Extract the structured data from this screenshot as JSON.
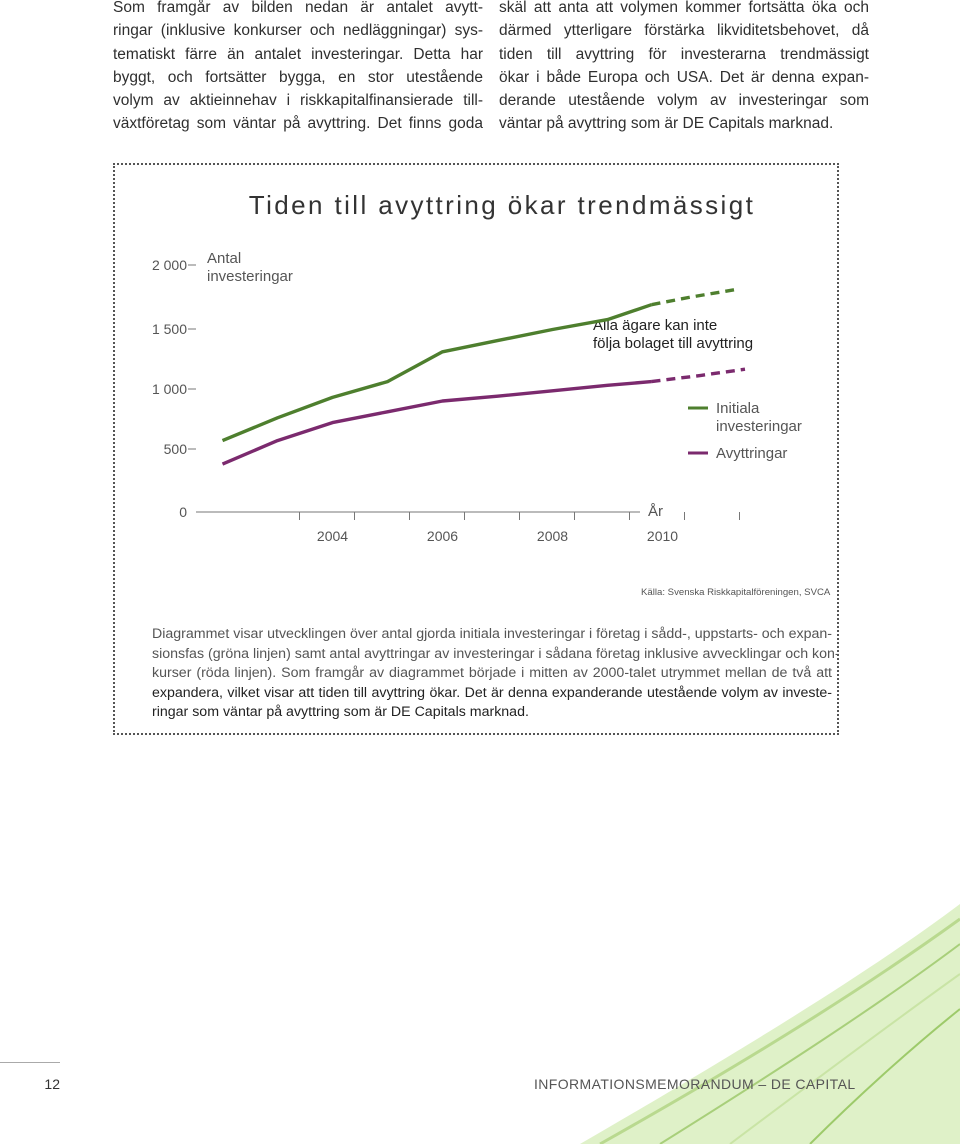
{
  "body_text": {
    "left_lines": [
      "Som framgår av bilden nedan är antalet avytt-",
      "ringar (inklusive konkurser och nedläggningar) sys-",
      "tematiskt färre än antalet investeringar. Detta har",
      "byggt, och fortsätter bygga, en stor utestående",
      "volym av aktieinnehav i riskkapitalfinansierade till-",
      "växtföretag som väntar på avyttring. Det finns goda"
    ],
    "right_lines": [
      "skäl att anta att volymen kommer fortsätta öka och",
      "därmed ytterligare förstärka likviditetsbehovet, då",
      "tiden till avyttring för investerarna trendmässigt",
      "ökar i både Europa och USA. Det är denna expan-",
      "derande utestående volym av investeringar som",
      "väntar på avyttring som är DE Capitals marknad."
    ]
  },
  "figure": {
    "title": "Tiden till avyttring ökar trendmässigt",
    "source": "Källa: Svenska Riskkapitalföreningen, SVCA",
    "caption_lines": [
      "Diagrammet visar utvecklingen över antal gjorda initiala investeringar i företag i sådd-, uppstarts- och expan-",
      "sionsfas (gröna linjen) samt antal avyttringar av investeringar i sådana företag inklusive avvecklingar och kon-",
      "kurser (röda linjen). Som framgår av diagrammet började i mitten av 2000-talet utrymmet mellan de två att",
      "expandera, vilket visar att tiden till avyttring ökar. Det är denna expanderande utestående volym av investe-",
      "ringar som väntar på avyttring som är DE Capitals marknad."
    ]
  },
  "chart_data": {
    "type": "line",
    "title": "Tiden till avyttring ökar trendmässigt",
    "ylabel": "Antal investeringar",
    "xlabel": "År",
    "y_ticks": [
      "2 000",
      "1 500",
      "1 000",
      "500",
      "0"
    ],
    "y_tick_values": [
      2000,
      1500,
      1000,
      500,
      0
    ],
    "x_ticks": [
      "2004",
      "2006",
      "2008",
      "2010"
    ],
    "ylim": [
      0,
      2000
    ],
    "xlim": [
      2002,
      2013
    ],
    "annotation": "Alla ägare kan inte följa bolaget till avyttring",
    "series": [
      {
        "name": "Initiala investeringar",
        "color": "#4e7f2e",
        "x": [
          2002.5,
          2003.5,
          2004.5,
          2005.5,
          2006.5,
          2007.5,
          2008.5,
          2009.5,
          2010.3
        ],
        "values": [
          570,
          760,
          930,
          1060,
          1300,
          1390,
          1480,
          1560,
          1680
        ],
        "projection": {
          "x": [
            2010.3,
            2011.0,
            2011.8
          ],
          "values": [
            1680,
            1740,
            1800
          ]
        }
      },
      {
        "name": "Avyttringar",
        "color": "#7b2a6e",
        "x": [
          2002.5,
          2003.5,
          2004.5,
          2005.5,
          2006.5,
          2007.5,
          2008.5,
          2009.5,
          2010.3
        ],
        "values": [
          380,
          570,
          720,
          810,
          900,
          940,
          985,
          1030,
          1060
        ],
        "projection": {
          "x": [
            2010.3,
            2011.2,
            2012.0
          ],
          "values": [
            1060,
            1110,
            1160
          ]
        }
      }
    ],
    "legend_position": "right"
  },
  "footer": {
    "page_number": "12",
    "doc_title": "INFORMATIONSMEMORANDUM – DE CAPITAL"
  },
  "colors": {
    "green": "#4e7f2e",
    "purple": "#7b2a6e",
    "light_green": "#b9d98f"
  }
}
